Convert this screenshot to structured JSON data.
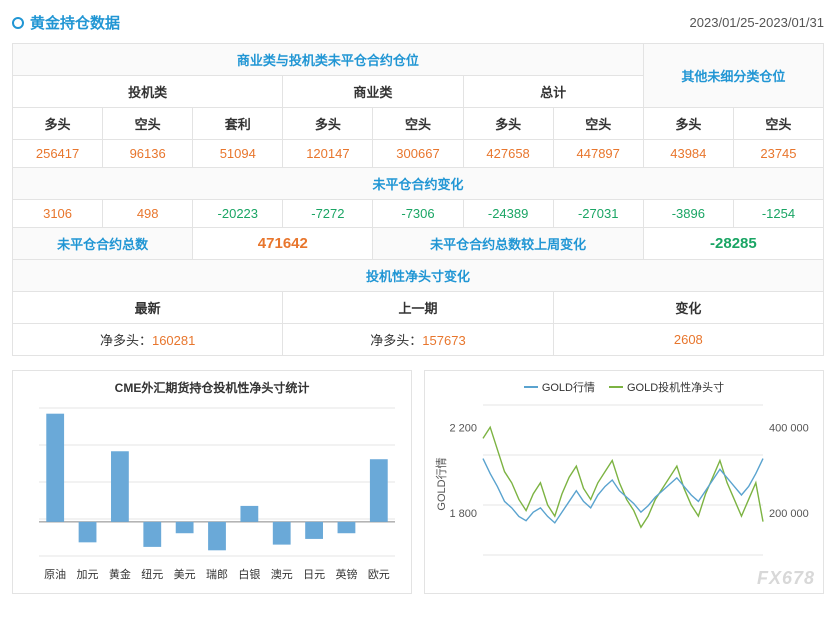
{
  "header": {
    "title": "黄金持仓数据",
    "date_range": "2023/01/25-2023/01/31"
  },
  "table": {
    "group_header": "商业类与投机类未平仓合约仓位",
    "other_header": "其他未细分类仓位",
    "cat_spec": "投机类",
    "cat_comm": "商业类",
    "cat_total": "总计",
    "col_long": "多头",
    "col_short": "空头",
    "col_arb": "套利",
    "row1": {
      "spec_long": "256417",
      "spec_short": "96136",
      "spec_arb": "51094",
      "comm_long": "120147",
      "comm_short": "300667",
      "total_long": "427658",
      "total_short": "447897",
      "other_long": "43984",
      "other_short": "23745"
    },
    "change_header": "未平仓合约变化",
    "row2": {
      "c1": "3106",
      "c2": "498",
      "c3": "-20223",
      "c4": "-7272",
      "c5": "-7306",
      "c6": "-24389",
      "c7": "-27031",
      "c8": "-3896",
      "c9": "-1254"
    },
    "totals": {
      "total_open_label": "未平仓合约总数",
      "total_open_value": "471642",
      "wow_label": "未平仓合约总数较上周变化",
      "wow_value": "-28285"
    },
    "net_header": "投机性净头寸变化",
    "net_cols": {
      "latest": "最新",
      "prev": "上一期",
      "change": "变化"
    },
    "net_vals": {
      "latest_label": "净多头：",
      "latest_val": "160281",
      "prev_label": "净多头：",
      "prev_val": "157673",
      "change_val": "2608"
    }
  },
  "chart_left": {
    "title": "CME外汇期货持仓投机性净头寸统计",
    "type": "bar",
    "bar_color": "#6aa9d8",
    "grid_color": "#e6e6e6",
    "axis_color": "#888888",
    "categories": [
      "原油",
      "加元",
      "黄金",
      "纽元",
      "美元",
      "瑞郎",
      "白银",
      "澳元",
      "日元",
      "英镑",
      "欧元"
    ],
    "values": [
      95,
      -18,
      62,
      -22,
      -10,
      -25,
      14,
      -20,
      -15,
      -10,
      55
    ],
    "ylim": [
      -30,
      100
    ],
    "bar_width": 0.55,
    "label_fontsize": 11
  },
  "chart_right": {
    "type": "line",
    "legend": [
      {
        "label": "GOLD行情",
        "color": "#5aa3cf"
      },
      {
        "label": "GOLD投机性净头寸",
        "color": "#7cb342"
      }
    ],
    "y_left_label": "GOLD行情",
    "y_left_ticks": [
      "2 200",
      "1 800"
    ],
    "y_right_ticks": [
      "400 000",
      "200 000"
    ],
    "grid_color": "#e6e6e6",
    "axis_color": "#888888",
    "line_width": 1.4,
    "series_blue": [
      2050,
      1980,
      1920,
      1850,
      1820,
      1780,
      1760,
      1800,
      1820,
      1780,
      1750,
      1800,
      1850,
      1900,
      1850,
      1820,
      1880,
      1920,
      1950,
      1900,
      1870,
      1840,
      1800,
      1830,
      1870,
      1900,
      1930,
      1960,
      1920,
      1880,
      1850,
      1900,
      1950,
      2000,
      1960,
      1920,
      1880,
      1920,
      1980,
      2050
    ],
    "series_green": [
      360000,
      380000,
      340000,
      300000,
      280000,
      250000,
      230000,
      260000,
      280000,
      240000,
      220000,
      260000,
      290000,
      310000,
      270000,
      250000,
      280000,
      300000,
      320000,
      280000,
      250000,
      230000,
      200000,
      220000,
      250000,
      270000,
      290000,
      310000,
      270000,
      240000,
      220000,
      260000,
      290000,
      320000,
      280000,
      250000,
      220000,
      250000,
      280000,
      210000
    ],
    "left_ylim": [
      1600,
      2300
    ],
    "right_ylim": [
      150000,
      420000
    ]
  },
  "watermark": "FX678"
}
